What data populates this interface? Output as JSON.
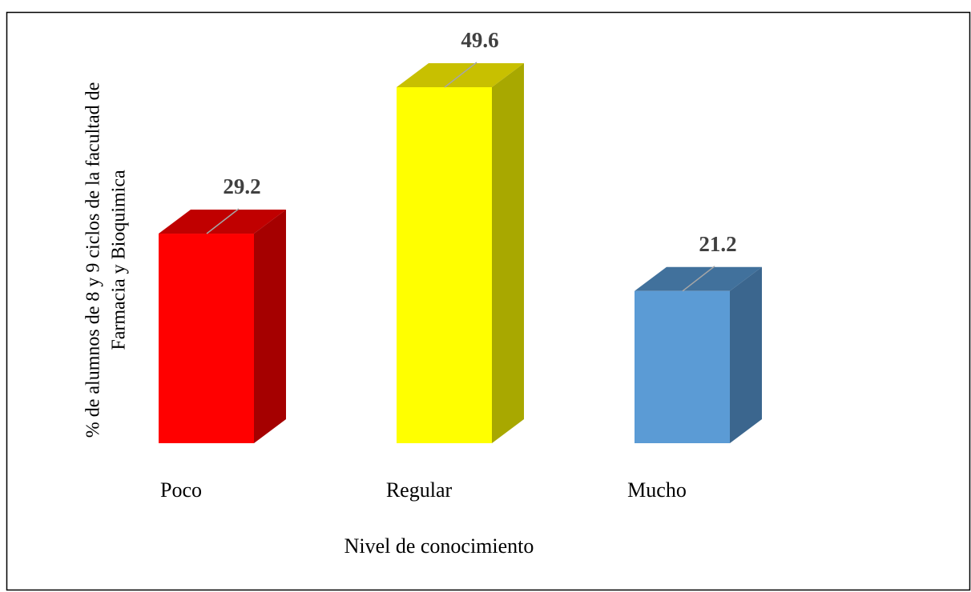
{
  "chart_data": {
    "type": "bar",
    "y_label": [
      "% de alumnos de 8 y 9 ciclos de la facultad de",
      "Farmacia y Bioquimica"
    ],
    "x_label": "Nivel de conocimiento",
    "categories": [
      "Poco",
      "Regular",
      "Mucho"
    ],
    "values": [
      29.2,
      49.6,
      21.2
    ],
    "colors": [
      "#ff0000",
      "#ffff00",
      "#5b9bd5"
    ],
    "top_colors": [
      "#c00000",
      "#c8c000",
      "#41719c"
    ],
    "side_colors": [
      "#a50000",
      "#a8a800",
      "#3b668e"
    ]
  }
}
